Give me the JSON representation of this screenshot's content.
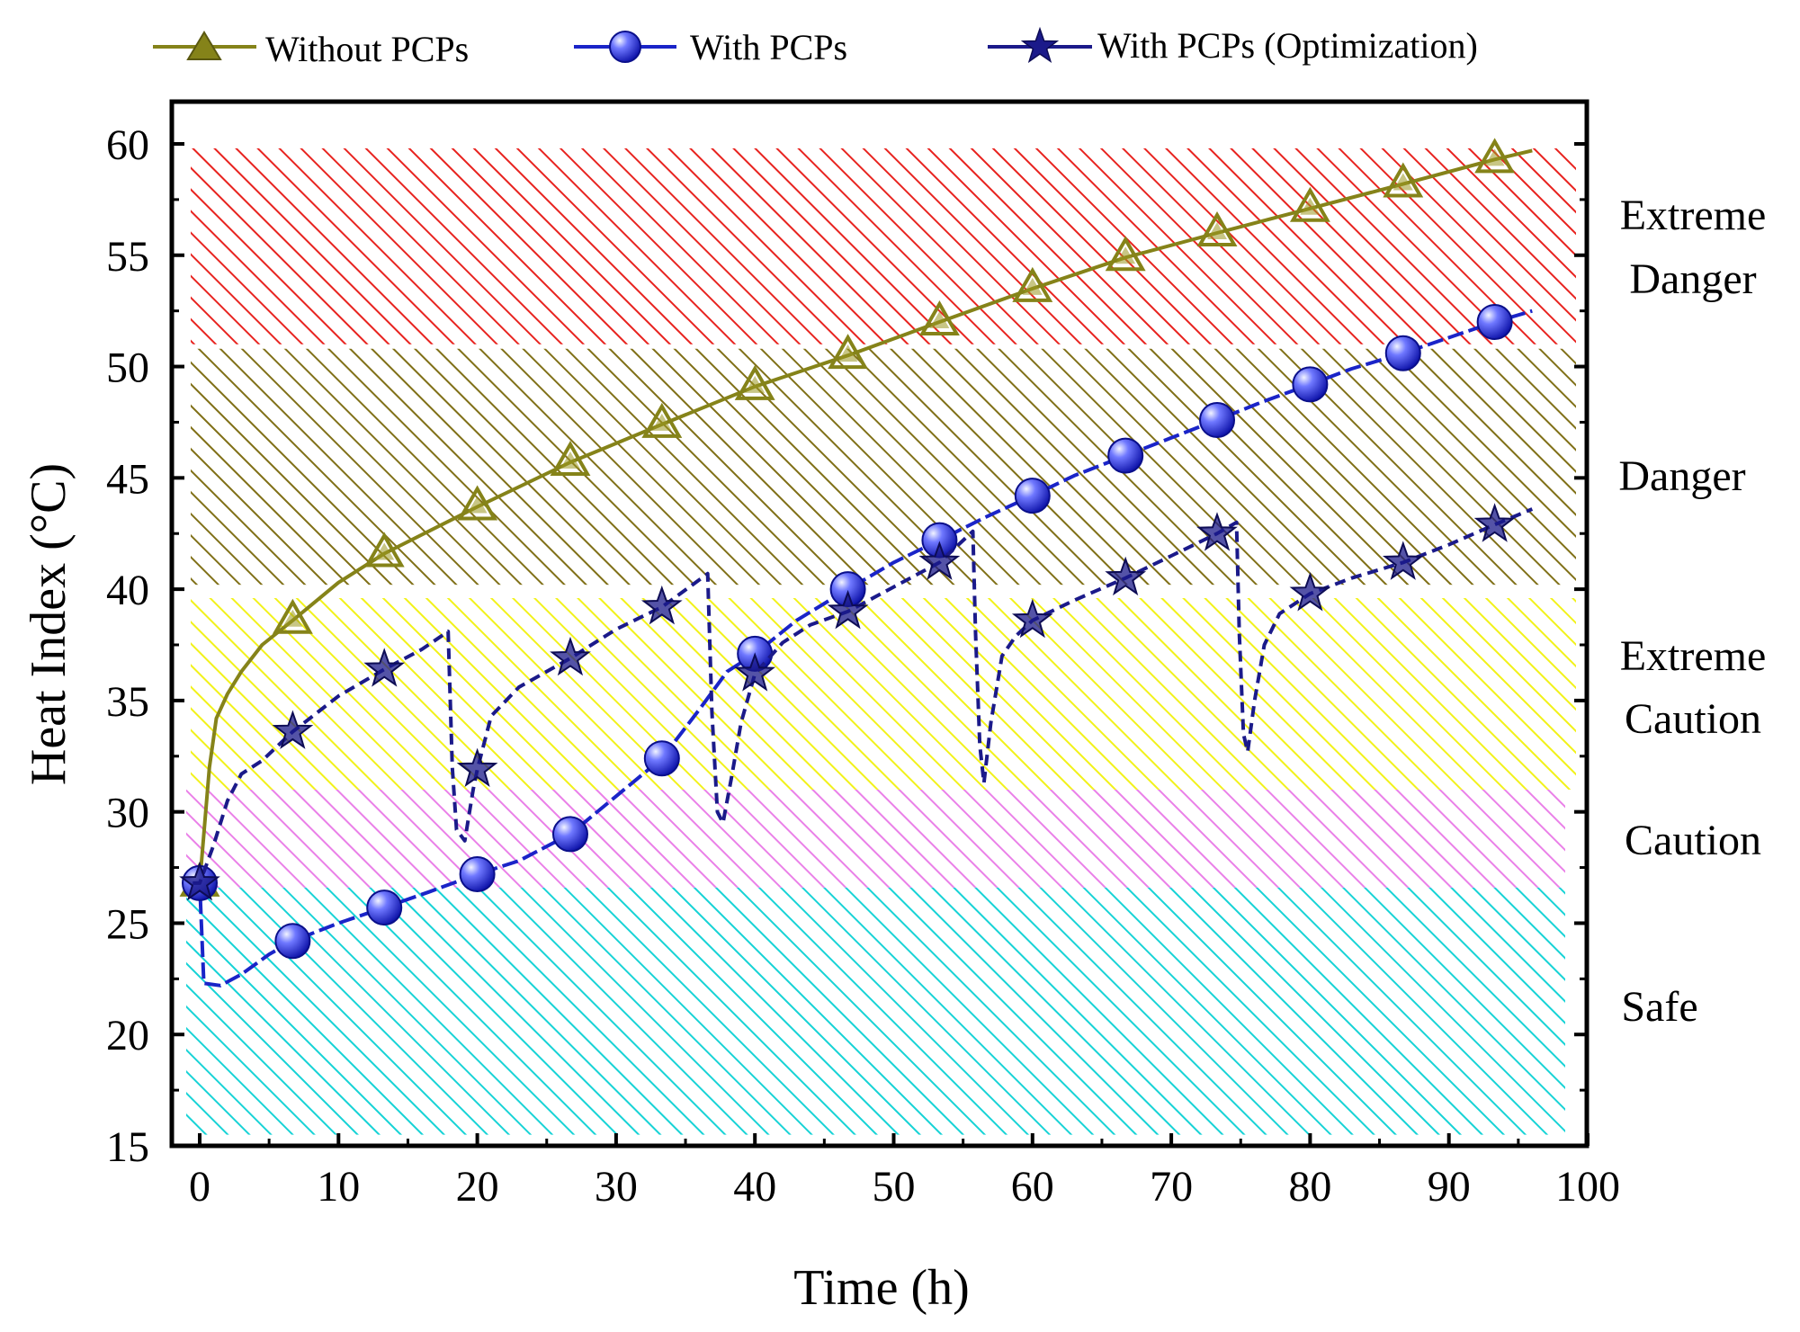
{
  "chart_data": {
    "type": "line",
    "xlabel": "Time (h)",
    "ylabel": "Heat Index (°C)",
    "xlim": [
      -2,
      100
    ],
    "ylim": [
      15,
      62
    ],
    "xticks": [
      "0",
      "10",
      "20",
      "30",
      "40",
      "50",
      "60",
      "70",
      "80",
      "90",
      "100"
    ],
    "yticks": [
      "15",
      "20",
      "25",
      "30",
      "35",
      "40",
      "45",
      "50",
      "55",
      "60"
    ],
    "zones": [
      {
        "name": "Safe",
        "label": "Safe",
        "from": 15.5,
        "to": 26.6,
        "color": "#17d3d6"
      },
      {
        "name": "Caution",
        "label": "Caution",
        "from": 26.6,
        "to": 31.0,
        "color": "#ea80e8"
      },
      {
        "name": "Extreme Caution",
        "label": "Extreme Caution",
        "from": 31.0,
        "to": 39.6,
        "color": "#f2f21a"
      },
      {
        "name": "Danger",
        "label": "Danger",
        "from": 40.2,
        "to": 50.8,
        "color": "#807017"
      },
      {
        "name": "Extreme Danger",
        "label": "Extreme Danger",
        "from": 51.0,
        "to": 59.8,
        "color": "#e8231f"
      }
    ],
    "series": [
      {
        "name": "Without PCPs",
        "color": "#858319",
        "marker": "triangle",
        "markers": [
          [
            0,
            26.8
          ],
          [
            6.7,
            38.6
          ],
          [
            13.3,
            41.6
          ],
          [
            20,
            43.7
          ],
          [
            26.7,
            45.7
          ],
          [
            33.3,
            47.4
          ],
          [
            40,
            49.1
          ],
          [
            46.7,
            50.5
          ],
          [
            53.3,
            52.0
          ],
          [
            60,
            53.5
          ],
          [
            66.7,
            54.9
          ],
          [
            73.3,
            56.0
          ],
          [
            80,
            57.1
          ],
          [
            86.7,
            58.2
          ],
          [
            93.3,
            59.3
          ]
        ],
        "line": [
          [
            0,
            26.8
          ],
          [
            0.3,
            29
          ],
          [
            0.7,
            32
          ],
          [
            1.2,
            34.2
          ],
          [
            2,
            35.3
          ],
          [
            3,
            36.3
          ],
          [
            4.5,
            37.5
          ],
          [
            6.7,
            38.6
          ],
          [
            10,
            40.3
          ],
          [
            13.3,
            41.6
          ],
          [
            20,
            43.7
          ],
          [
            26.7,
            45.7
          ],
          [
            33.3,
            47.4
          ],
          [
            40,
            49.1
          ],
          [
            46.7,
            50.5
          ],
          [
            53.3,
            52.0
          ],
          [
            60,
            53.5
          ],
          [
            66.7,
            54.9
          ],
          [
            73.3,
            56.0
          ],
          [
            80,
            57.1
          ],
          [
            86.7,
            58.2
          ],
          [
            93.3,
            59.3
          ],
          [
            96,
            59.7
          ]
        ]
      },
      {
        "name": "With PCPs",
        "color": "#1a24c8",
        "marker": "circle",
        "markers": [
          [
            0,
            26.8
          ],
          [
            6.7,
            24.2
          ],
          [
            13.3,
            25.7
          ],
          [
            20,
            27.2
          ],
          [
            26.7,
            29.0
          ],
          [
            33.3,
            32.4
          ],
          [
            40,
            37.1
          ],
          [
            46.7,
            40.0
          ],
          [
            53.3,
            42.2
          ],
          [
            60,
            44.2
          ],
          [
            66.7,
            46.0
          ],
          [
            73.3,
            47.6
          ],
          [
            80,
            49.2
          ],
          [
            86.7,
            50.6
          ],
          [
            93.3,
            52.0
          ]
        ],
        "line": [
          [
            -0.5,
            26.8
          ],
          [
            0,
            26.8
          ],
          [
            0.3,
            22.3
          ],
          [
            1.5,
            22.2
          ],
          [
            3,
            22.7
          ],
          [
            5,
            23.6
          ],
          [
            6.7,
            24.2
          ],
          [
            10,
            25.0
          ],
          [
            13.3,
            25.7
          ],
          [
            16.5,
            26.4
          ],
          [
            20,
            27.2
          ],
          [
            23,
            27.8
          ],
          [
            26.7,
            29.0
          ],
          [
            30,
            30.7
          ],
          [
            33.3,
            32.4
          ],
          [
            36,
            34.6
          ],
          [
            38,
            36.3
          ],
          [
            40,
            37.1
          ],
          [
            43,
            38.6
          ],
          [
            46.7,
            40.0
          ],
          [
            50,
            41.2
          ],
          [
            53.3,
            42.2
          ],
          [
            56.5,
            43.2
          ],
          [
            60,
            44.2
          ],
          [
            63,
            45.1
          ],
          [
            66.7,
            46.0
          ],
          [
            70,
            46.8
          ],
          [
            73.3,
            47.6
          ],
          [
            76.5,
            48.4
          ],
          [
            80,
            49.2
          ],
          [
            83,
            49.9
          ],
          [
            86.7,
            50.6
          ],
          [
            90,
            51.3
          ],
          [
            93.3,
            52.0
          ],
          [
            96,
            52.5
          ]
        ]
      },
      {
        "name": "With PCPs (Optimization)",
        "color": "#1b1a8a",
        "marker": "star",
        "markers": [
          [
            0,
            26.8
          ],
          [
            6.7,
            33.6
          ],
          [
            13.3,
            36.4
          ],
          [
            20,
            31.9
          ],
          [
            26.7,
            36.9
          ],
          [
            33.3,
            39.2
          ],
          [
            40,
            36.2
          ],
          [
            46.7,
            39.0
          ],
          [
            53.3,
            41.2
          ],
          [
            60,
            38.6
          ],
          [
            66.7,
            40.5
          ],
          [
            73.3,
            42.5
          ],
          [
            80,
            39.8
          ],
          [
            86.7,
            41.2
          ],
          [
            93.3,
            42.9
          ]
        ],
        "line": [
          [
            -0.5,
            26.8
          ],
          [
            0,
            26.8
          ],
          [
            1,
            28.5
          ],
          [
            2,
            30.5
          ],
          [
            3,
            31.7
          ],
          [
            4.5,
            32.3
          ],
          [
            6.7,
            33.6
          ],
          [
            10,
            35.2
          ],
          [
            13.3,
            36.4
          ],
          [
            16,
            37.3
          ],
          [
            17.9,
            38.1
          ],
          [
            18.2,
            32.0
          ],
          [
            18.5,
            29.2
          ],
          [
            19.1,
            28.7
          ],
          [
            19.7,
            31.0
          ],
          [
            20,
            31.9
          ],
          [
            21,
            34.3
          ],
          [
            23,
            35.6
          ],
          [
            26.7,
            36.9
          ],
          [
            30,
            38.2
          ],
          [
            33.3,
            39.2
          ],
          [
            35.5,
            40.2
          ],
          [
            36.6,
            40.7
          ],
          [
            36.9,
            34.5
          ],
          [
            37.3,
            30.0
          ],
          [
            37.7,
            29.5
          ],
          [
            38.3,
            31.5
          ],
          [
            39,
            34.0
          ],
          [
            40,
            36.2
          ],
          [
            42,
            37.6
          ],
          [
            44,
            38.4
          ],
          [
            46.7,
            39.0
          ],
          [
            50,
            40.1
          ],
          [
            53.3,
            41.2
          ],
          [
            55.7,
            42.6
          ],
          [
            55.9,
            38.0
          ],
          [
            56.2,
            33.0
          ],
          [
            56.5,
            31.3
          ],
          [
            57,
            34.0
          ],
          [
            57.8,
            37.0
          ],
          [
            58.8,
            37.9
          ],
          [
            60,
            38.6
          ],
          [
            63,
            39.5
          ],
          [
            66.7,
            40.5
          ],
          [
            70,
            41.5
          ],
          [
            73.3,
            42.5
          ],
          [
            74.7,
            43.0
          ],
          [
            74.9,
            38.0
          ],
          [
            75.2,
            33.5
          ],
          [
            75.5,
            32.7
          ],
          [
            76,
            35.0
          ],
          [
            76.7,
            37.5
          ],
          [
            77.8,
            38.9
          ],
          [
            80,
            39.8
          ],
          [
            83,
            40.5
          ],
          [
            86.7,
            41.2
          ],
          [
            90,
            42.0
          ],
          [
            93.3,
            42.9
          ],
          [
            96,
            43.6
          ]
        ]
      }
    ]
  }
}
